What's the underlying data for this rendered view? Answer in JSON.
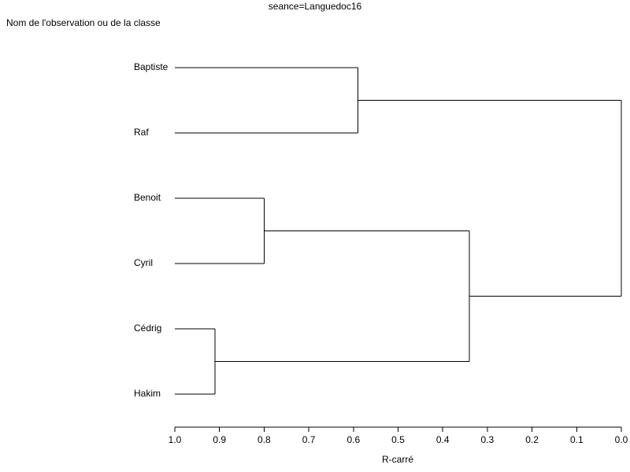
{
  "chart_data": {
    "type": "dendrogram",
    "title": "seance=Languedoc16",
    "ylabel": "Nom de l'observation ou de la classe",
    "xlabel": "R-carré",
    "xlim": [
      1,
      0
    ],
    "xticks": [
      {
        "value": 1,
        "label": "1.0"
      },
      0.9,
      0.8,
      0.7,
      0.6,
      0.5,
      0.4,
      0.3,
      0.2,
      0.1,
      {
        "value": 0,
        "label": "0.0"
      }
    ],
    "color": "#000000",
    "tree": {
      "height": 0,
      "children": [
        {
          "height": 0.59,
          "children": [
            {
              "label": "Baptiste"
            },
            {
              "label": "Raf"
            }
          ]
        },
        {
          "height": 0.34,
          "children": [
            {
              "height": 0.8,
              "children": [
                {
                  "label": "Benoit"
                },
                {
                  "label": "Cyril"
                }
              ]
            },
            {
              "height": 0.91,
              "children": [
                {
                  "label": "Cédrig"
                },
                {
                  "label": "Hakim"
                }
              ]
            }
          ]
        }
      ]
    }
  }
}
